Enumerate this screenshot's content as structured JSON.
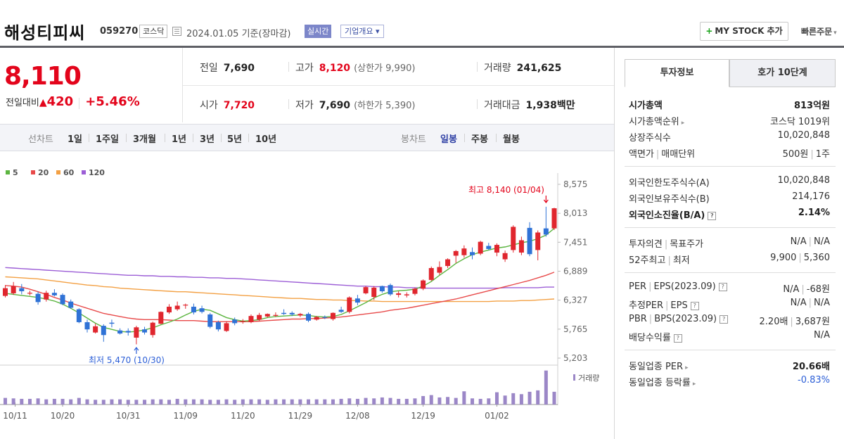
{
  "header": {
    "name": "해성티피씨",
    "code": "059270",
    "market": "코스닥",
    "date": "2024.01.05  기준(장마감)",
    "realtime_label": "실시간",
    "company_label": "기업개요 ▾",
    "mystock_label": "MY STOCK 추가",
    "quick_order_label": "빠른주문"
  },
  "price": {
    "current": "8,110",
    "change_label": "전일대비",
    "change": "420",
    "change_pct": "+5.46%"
  },
  "quote": {
    "prev_label": "전일",
    "prev": "7,690",
    "high_label": "고가",
    "high": "8,120",
    "upper_limit": "(상한가 9,990)",
    "volume_label": "거래량",
    "volume": "241,625",
    "open_label": "시가",
    "open": "7,720",
    "low_label": "저가",
    "low": "7,690",
    "lower_limit": "(하한가 5,390)",
    "amount_label": "거래대금",
    "amount": "1,938",
    "amount_unit": "백만"
  },
  "toolbar": {
    "line_label": "선차트",
    "line_periods": [
      "1일",
      "1주일",
      "3개월",
      "1년",
      "3년",
      "5년",
      "10년"
    ],
    "candle_label": "봉차트",
    "candle_periods": [
      "일봉",
      "주봉",
      "월봉"
    ]
  },
  "chart_data": {
    "type": "candlestick",
    "legend": [
      "5",
      "20",
      "60",
      "120"
    ],
    "legend_colors": [
      "#5cb540",
      "#e84a4a",
      "#f3a043",
      "#9c5ed6"
    ],
    "y_ticks": [
      "8,575",
      "8,013",
      "7,451",
      "6,889",
      "6,327",
      "5,765",
      "5,203"
    ],
    "ylim": [
      5203,
      8575
    ],
    "x_ticks": [
      "10/11",
      "10/20",
      "10/31",
      "11/09",
      "11/20",
      "11/29",
      "12/08",
      "12/19",
      "01/02"
    ],
    "annotation_high": "최고 8,140 (01/04)",
    "annotation_low": "최저 5,470 (10/30)",
    "volume_label": "거래량",
    "candles": [
      {
        "o": 6410,
        "c": 6560,
        "h": 6620,
        "l": 6380
      },
      {
        "o": 6460,
        "c": 6600,
        "h": 6680,
        "l": 6430
      },
      {
        "o": 6560,
        "c": 6500,
        "h": 6640,
        "l": 6440
      },
      {
        "o": 6470,
        "c": 6470,
        "h": 6510,
        "l": 6420
      },
      {
        "o": 6450,
        "c": 6290,
        "h": 6490,
        "l": 6240
      },
      {
        "o": 6340,
        "c": 6470,
        "h": 6510,
        "l": 6300
      },
      {
        "o": 6470,
        "c": 6420,
        "h": 6540,
        "l": 6400
      },
      {
        "o": 6430,
        "c": 6250,
        "h": 6460,
        "l": 6230
      },
      {
        "o": 6300,
        "c": 6180,
        "h": 6340,
        "l": 6160
      },
      {
        "o": 6150,
        "c": 5900,
        "h": 6170,
        "l": 5880
      },
      {
        "o": 5900,
        "c": 5760,
        "h": 5950,
        "l": 5700
      },
      {
        "o": 5700,
        "c": 5820,
        "h": 5870,
        "l": 5680
      },
      {
        "o": 5830,
        "c": 5650,
        "h": 5860,
        "l": 5520
      },
      {
        "o": 5890,
        "c": 5870,
        "h": 5950,
        "l": 5800
      },
      {
        "o": 5740,
        "c": 5680,
        "h": 5780,
        "l": 5660
      },
      {
        "o": 5730,
        "c": 5700,
        "h": 5780,
        "l": 5640
      },
      {
        "o": 5600,
        "c": 5800,
        "h": 5830,
        "l": 5470
      },
      {
        "o": 5760,
        "c": 5700,
        "h": 5810,
        "l": 5660
      },
      {
        "o": 5650,
        "c": 5890,
        "h": 5910,
        "l": 5600
      },
      {
        "o": 5870,
        "c": 6100,
        "h": 6110,
        "l": 5860
      },
      {
        "o": 6090,
        "c": 6200,
        "h": 6250,
        "l": 6060
      },
      {
        "o": 6150,
        "c": 6220,
        "h": 6300,
        "l": 6120
      },
      {
        "o": 6230,
        "c": 6240,
        "h": 6260,
        "l": 6160
      },
      {
        "o": 6200,
        "c": 6090,
        "h": 6260,
        "l": 6050
      },
      {
        "o": 6170,
        "c": 6100,
        "h": 6220,
        "l": 6070
      },
      {
        "o": 6050,
        "c": 5810,
        "h": 6080,
        "l": 5780
      },
      {
        "o": 5900,
        "c": 5760,
        "h": 5930,
        "l": 5720
      },
      {
        "o": 5730,
        "c": 5880,
        "h": 5920,
        "l": 5710
      },
      {
        "o": 5950,
        "c": 5880,
        "h": 5990,
        "l": 5840
      },
      {
        "o": 5900,
        "c": 5920,
        "h": 5960,
        "l": 5870
      },
      {
        "o": 5900,
        "c": 6020,
        "h": 6050,
        "l": 5880
      },
      {
        "o": 5950,
        "c": 6040,
        "h": 6080,
        "l": 5920
      },
      {
        "o": 6010,
        "c": 6060,
        "h": 6070,
        "l": 5990
      },
      {
        "o": 6030,
        "c": 6040,
        "h": 6090,
        "l": 6000
      },
      {
        "o": 6080,
        "c": 6060,
        "h": 6150,
        "l": 6040
      },
      {
        "o": 6080,
        "c": 6050,
        "h": 6110,
        "l": 6020
      },
      {
        "o": 6030,
        "c": 6060,
        "h": 6080,
        "l": 6000
      },
      {
        "o": 6060,
        "c": 5930,
        "h": 6090,
        "l": 5900
      },
      {
        "o": 5950,
        "c": 6000,
        "h": 6020,
        "l": 5930
      },
      {
        "o": 6000,
        "c": 5990,
        "h": 6030,
        "l": 5960
      },
      {
        "o": 5960,
        "c": 6080,
        "h": 6090,
        "l": 5930
      },
      {
        "o": 6140,
        "c": 6100,
        "h": 6200,
        "l": 6080
      },
      {
        "o": 6100,
        "c": 6380,
        "h": 6400,
        "l": 6070
      },
      {
        "o": 6360,
        "c": 6280,
        "h": 6430,
        "l": 6230
      },
      {
        "o": 6460,
        "c": 6580,
        "h": 6600,
        "l": 6440
      },
      {
        "o": 6390,
        "c": 6570,
        "h": 6600,
        "l": 6330
      },
      {
        "o": 6600,
        "c": 6500,
        "h": 6610,
        "l": 6470
      },
      {
        "o": 6620,
        "c": 6440,
        "h": 6650,
        "l": 6410
      },
      {
        "o": 6430,
        "c": 6460,
        "h": 6500,
        "l": 6380
      },
      {
        "o": 6420,
        "c": 6440,
        "h": 6480,
        "l": 6380
      },
      {
        "o": 6450,
        "c": 6550,
        "h": 6570,
        "l": 6420
      },
      {
        "o": 6550,
        "c": 6710,
        "h": 6730,
        "l": 6520
      },
      {
        "o": 6720,
        "c": 6950,
        "h": 6980,
        "l": 6700
      },
      {
        "o": 6860,
        "c": 6970,
        "h": 7080,
        "l": 6820
      },
      {
        "o": 6990,
        "c": 7120,
        "h": 7140,
        "l": 6950
      },
      {
        "o": 7190,
        "c": 7280,
        "h": 7300,
        "l": 7050
      },
      {
        "o": 7200,
        "c": 7330,
        "h": 7390,
        "l": 7150
      },
      {
        "o": 7260,
        "c": 7200,
        "h": 7350,
        "l": 7120
      },
      {
        "o": 7230,
        "c": 7460,
        "h": 7480,
        "l": 7200
      },
      {
        "o": 7380,
        "c": 7320,
        "h": 7440,
        "l": 7300
      },
      {
        "o": 7250,
        "c": 7400,
        "h": 7430,
        "l": 7180
      },
      {
        "o": 7120,
        "c": 7240,
        "h": 7290,
        "l": 7070
      },
      {
        "o": 7300,
        "c": 7750,
        "h": 7780,
        "l": 7250
      },
      {
        "o": 7250,
        "c": 7490,
        "h": 7560,
        "l": 7200
      },
      {
        "o": 7730,
        "c": 7220,
        "h": 7840,
        "l": 7180
      },
      {
        "o": 7300,
        "c": 7640,
        "h": 7680,
        "l": 7100
      },
      {
        "o": 7720,
        "c": 7600,
        "h": 8140,
        "l": 7560
      },
      {
        "o": 7720,
        "c": 8110,
        "h": 8120,
        "l": 7690
      }
    ],
    "ma5": [
      6460,
      6440,
      6420,
      6400,
      6380,
      6350,
      6310,
      6250,
      6170,
      6080,
      5980,
      5880,
      5800,
      5760,
      5720,
      5710,
      5720,
      5750,
      5790,
      5850,
      5900,
      5960,
      6040,
      6110,
      6150,
      6130,
      6060,
      5990,
      5950,
      5920,
      5930,
      5950,
      5990,
      6010,
      6020,
      6030,
      6040,
      6030,
      6010,
      6000,
      6010,
      6050,
      6120,
      6200,
      6280,
      6370,
      6440,
      6490,
      6510,
      6520,
      6540,
      6600,
      6690,
      6810,
      6920,
      7040,
      7130,
      7210,
      7260,
      7300,
      7340,
      7360,
      7400,
      7440,
      7470,
      7520,
      7590,
      7720
    ],
    "ma20": [
      6610,
      6600,
      6580,
      6540,
      6490,
      6440,
      6380,
      6330,
      6270,
      6220,
      6170,
      6120,
      6070,
      6040,
      6010,
      5980,
      5960,
      5950,
      5950,
      5950,
      5940,
      5930,
      5930,
      5930,
      5920,
      5910,
      5910,
      5910,
      5910,
      5910,
      5910,
      5920,
      5930,
      5940,
      5950,
      5960,
      5960,
      5970,
      5970,
      5980,
      5990,
      6000,
      6020,
      6040,
      6060,
      6080,
      6100,
      6130,
      6150,
      6170,
      6200,
      6230,
      6260,
      6290,
      6320,
      6350,
      6390,
      6430,
      6470,
      6510,
      6550,
      6590,
      6630,
      6670,
      6710,
      6760,
      6810,
      6870
    ],
    "ma60": [
      6780,
      6770,
      6760,
      6750,
      6740,
      6720,
      6700,
      6680,
      6660,
      6640,
      6620,
      6610,
      6590,
      6580,
      6560,
      6550,
      6540,
      6530,
      6520,
      6510,
      6500,
      6490,
      6490,
      6480,
      6470,
      6460,
      6450,
      6440,
      6430,
      6420,
      6410,
      6400,
      6390,
      6380,
      6370,
      6360,
      6360,
      6350,
      6340,
      6340,
      6330,
      6330,
      6320,
      6320,
      6310,
      6310,
      6300,
      6300,
      6300,
      6300,
      6300,
      6300,
      6300,
      6300,
      6300,
      6300,
      6300,
      6300,
      6300,
      6300,
      6310,
      6310,
      6310,
      6320,
      6320,
      6330,
      6340,
      6350
    ],
    "ma120": [
      6960,
      6950,
      6940,
      6930,
      6920,
      6910,
      6900,
      6890,
      6880,
      6870,
      6860,
      6850,
      6840,
      6830,
      6820,
      6810,
      6810,
      6800,
      6800,
      6790,
      6790,
      6780,
      6780,
      6770,
      6770,
      6760,
      6760,
      6750,
      6750,
      6740,
      6730,
      6720,
      6710,
      6700,
      6690,
      6680,
      6670,
      6660,
      6650,
      6640,
      6630,
      6620,
      6610,
      6600,
      6600,
      6590,
      6590,
      6580,
      6580,
      6570,
      6570,
      6560,
      6560,
      6560,
      6560,
      6560,
      6560,
      6560,
      6560,
      6560,
      6560,
      6570,
      6570,
      6570,
      6570,
      6570,
      6580,
      6580
    ],
    "volume": [
      14,
      13,
      12,
      12,
      13,
      11,
      12,
      12,
      11,
      14,
      11,
      10,
      10,
      11,
      11,
      10,
      10,
      10,
      11,
      11,
      10,
      12,
      11,
      11,
      11,
      10,
      10,
      11,
      10,
      11,
      11,
      11,
      10,
      11,
      11,
      11,
      11,
      11,
      11,
      11,
      11,
      12,
      13,
      12,
      14,
      13,
      15,
      14,
      12,
      12,
      13,
      18,
      20,
      15,
      16,
      14,
      28,
      13,
      12,
      13,
      26,
      19,
      24,
      22,
      27,
      30,
      72,
      27
    ],
    "volume_max": 76
  },
  "side": {
    "tab1": "투자정보",
    "tab2": "호가 10단계",
    "market_cap_label": "시가총액",
    "market_cap": "813억원",
    "cap_rank_label": "시가총액순위",
    "cap_rank": "코스닥 1019위",
    "shares_label": "상장주식수",
    "shares": "10,020,848",
    "par_label": "액면가",
    "trade_unit_label": "매매단위",
    "par": "500원",
    "trade_unit": "1주",
    "foreign_limit_label": "외국인한도주식수(A)",
    "foreign_limit": "10,020,848",
    "foreign_hold_label": "외국인보유주식수(B)",
    "foreign_hold": "214,176",
    "foreign_ratio_label": "외국인소진율(B/A)",
    "foreign_ratio": "2.14%",
    "opinion_label": "투자의견",
    "target_label": "목표주가",
    "opinion": "N/A",
    "target": "N/A",
    "w52_high_label": "52주최고",
    "w52_low_label": "최저",
    "w52_high": "9,900",
    "w52_low": "5,360",
    "per_label": "PER",
    "eps_label": "EPS(2023.09)",
    "per": "N/A",
    "eps": "-68원",
    "est_per_label": "추정PER",
    "est_eps_label": "EPS",
    "est_per": "N/A",
    "est_eps": "N/A",
    "pbr_label": "PBR",
    "bps_label": "BPS(2023.09)",
    "pbr": "2.20배",
    "bps": "3,687원",
    "div_label": "배당수익률",
    "div": "N/A",
    "sector_per_label": "동일업종 PER",
    "sector_per": "20.66배",
    "sector_rate_label": "동일업종 등락률",
    "sector_rate": "-0.83%"
  }
}
